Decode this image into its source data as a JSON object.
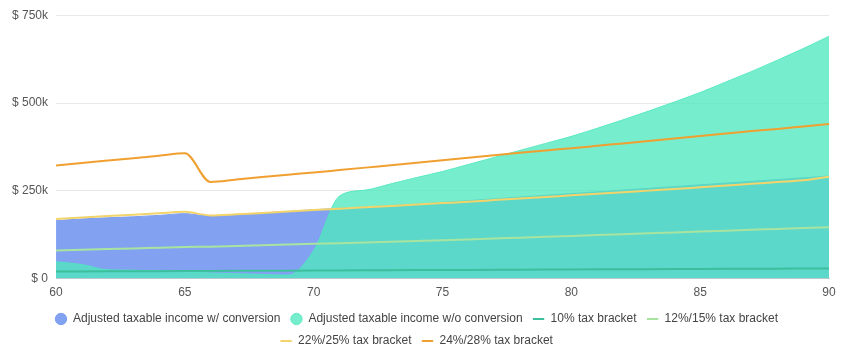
{
  "chart_data": {
    "type": "line",
    "x": [
      60,
      61,
      62,
      63,
      64,
      65,
      66,
      67,
      68,
      69,
      70,
      71,
      72,
      73,
      74,
      75,
      76,
      77,
      78,
      79,
      80,
      81,
      82,
      83,
      84,
      85,
      86,
      87,
      88,
      89,
      90
    ],
    "xlim": [
      60,
      90
    ],
    "xticks": [
      60,
      65,
      70,
      75,
      80,
      85,
      90
    ],
    "ylim": [
      0,
      750000
    ],
    "yticks": [
      {
        "value": 0,
        "label": "$ 0"
      },
      {
        "value": 250000,
        "label": "$ 250k"
      },
      {
        "value": 500000,
        "label": "$ 500k"
      },
      {
        "value": 750000,
        "label": "$ 750k"
      }
    ],
    "grid": true,
    "legend": "bottom",
    "series": [
      {
        "name": "Adjusted taxable income w/ conversion",
        "type": "area",
        "color": "#7b9cf0",
        "values": [
          165000,
          170000,
          173000,
          176000,
          180000,
          185000,
          178000,
          182000,
          187000,
          191000,
          196000,
          200000,
          204000,
          208000,
          212000,
          217000,
          222000,
          227000,
          232000,
          237000,
          242000,
          247000,
          252000,
          257000,
          262000,
          267000,
          272000,
          277000,
          282000,
          287000,
          292000
        ]
      },
      {
        "name": "Adjusted taxable income w/o conversion",
        "type": "area",
        "color": "#4fe8be",
        "values": [
          48000,
          40000,
          25000,
          24000,
          22000,
          20000,
          16000,
          14000,
          12000,
          10000,
          80000,
          235000,
          252000,
          270000,
          288000,
          305000,
          325000,
          345000,
          365000,
          385000,
          405000,
          428000,
          452000,
          477000,
          503000,
          530000,
          560000,
          590000,
          622000,
          655000,
          690000
        ]
      },
      {
        "name": "10% tax bracket",
        "type": "line",
        "color": "#3cbf9c",
        "values": [
          20000,
          20300,
          20600,
          20900,
          21200,
          21500,
          21800,
          22100,
          22400,
          22700,
          23000,
          23300,
          23600,
          23900,
          24200,
          24500,
          24800,
          25100,
          25400,
          25700,
          26000,
          26300,
          26600,
          26900,
          27200,
          27500,
          27800,
          28100,
          28400,
          28700,
          29000
        ]
      },
      {
        "name": "12%/15% tax bracket",
        "type": "line",
        "color": "#a8e4a0",
        "values": [
          80000,
          82000,
          84000,
          86000,
          88000,
          90000,
          91000,
          93000,
          95000,
          97000,
          99000,
          101000,
          103000,
          105000,
          107000,
          109000,
          111500,
          114000,
          116500,
          119000,
          121500,
          124000,
          126500,
          129000,
          131500,
          134000,
          136500,
          139000,
          141500,
          144000,
          146500
        ]
      },
      {
        "name": "22%/25% tax bracket",
        "type": "line",
        "color": "#f2d46b",
        "values": [
          170000,
          174000,
          178000,
          182000,
          186000,
          190000,
          180000,
          183000,
          187000,
          191000,
          195000,
          199000,
          203000,
          207000,
          211000,
          215000,
          219000,
          223500,
          228000,
          232500,
          237000,
          241500,
          246000,
          250500,
          255000,
          260000,
          265000,
          270000,
          275000,
          280000,
          290000
        ]
      },
      {
        "name": "24%/28% tax bracket",
        "type": "line",
        "color": "#f0a030",
        "values": [
          322000,
          329000,
          336000,
          343000,
          350000,
          357000,
          275000,
          282000,
          289000,
          296000,
          302000,
          309000,
          316000,
          323000,
          330000,
          337000,
          344000,
          351000,
          358000,
          365000,
          371000,
          378000,
          385000,
          392000,
          399000,
          406000,
          413000,
          420000,
          426000,
          433000,
          440000
        ]
      }
    ]
  }
}
